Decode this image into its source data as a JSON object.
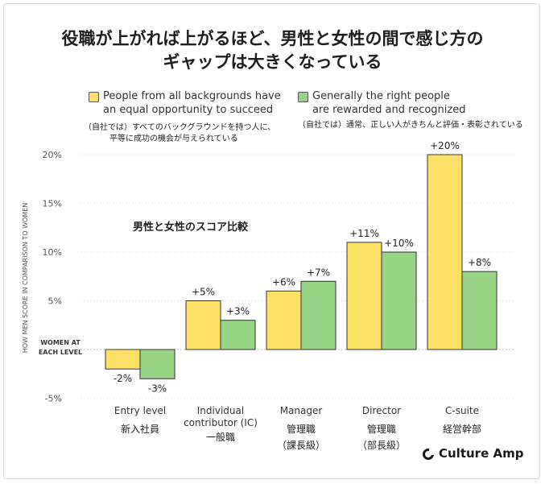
{
  "title_line1": "役職が上がれば上がるほど、男性と女性の間で感じ方の",
  "title_line2": "ギャップは大きくなっている",
  "legend": [
    {
      "line1": "People from all backgrounds have",
      "line2": "an equal opportunity to succeed",
      "note_line1": "（自社では）すべてのバックグラウンドを持つ人に、",
      "note_line2": "平等に成功の機会が与えられている",
      "color": "#ffe066"
    },
    {
      "line1": "Generally the right people",
      "line2": "are rewarded and recognized",
      "note_line1": "（自社では）通常、正しい人がきちんと評価・表彰されている",
      "note_line2": "",
      "color": "#98d485"
    }
  ],
  "brand": "Culture Amp",
  "chart_data": {
    "type": "bar",
    "annotation": "男性と女性のスコア比較",
    "ylabel": "HOW MEN SCORE IN COMPARISON TO WOMEN",
    "baseline_label_line1": "WOMEN AT",
    "baseline_label_line2": "EACH LEVEL",
    "yticks": [
      "20%",
      "15%",
      "10%",
      "5%",
      "-5%"
    ],
    "ytick_values": [
      20,
      15,
      10,
      5,
      -5
    ],
    "ylim": [
      -5,
      20
    ],
    "grid": true,
    "categories": [
      {
        "en_line1": "Entry level",
        "en_line2": "",
        "ja_line1": "新入社員",
        "ja_line2": ""
      },
      {
        "en_line1": "Individual",
        "en_line2": "contributor (IC)",
        "ja_line1": "一般職",
        "ja_line2": ""
      },
      {
        "en_line1": "Manager",
        "en_line2": "",
        "ja_line1": "管理職",
        "ja_line2": "（課長級）"
      },
      {
        "en_line1": "Director",
        "en_line2": "",
        "ja_line1": "管理職",
        "ja_line2": "（部長級）"
      },
      {
        "en_line1": "C-suite",
        "en_line2": "",
        "ja_line1": "経営幹部",
        "ja_line2": ""
      }
    ],
    "series": [
      {
        "name": "People from all backgrounds have an equal opportunity to succeed",
        "values": [
          -2,
          5,
          6,
          11,
          20
        ],
        "labels": [
          "-2%",
          "+5%",
          "+6%",
          "+11%",
          "+20%"
        ],
        "color": "#ffe066"
      },
      {
        "name": "Generally the right people are rewarded and recognized",
        "values": [
          -3,
          3,
          7,
          10,
          8
        ],
        "labels": [
          "-3%",
          "+3%",
          "+7%",
          "+10%",
          "+8%"
        ],
        "color": "#98d485"
      }
    ]
  }
}
